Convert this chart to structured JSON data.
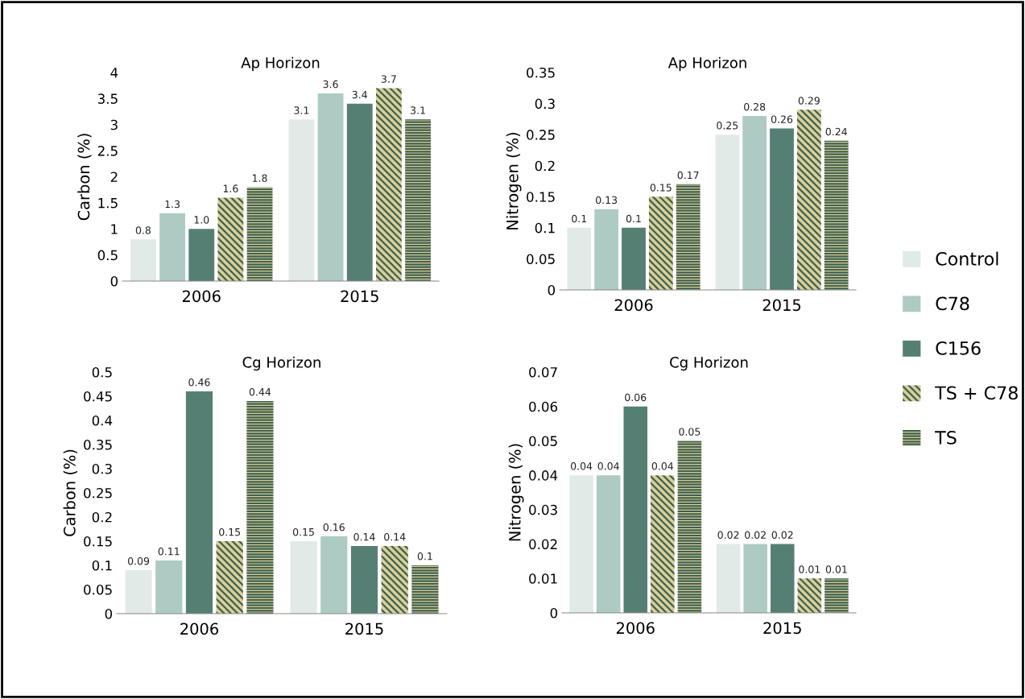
{
  "chart_data": [
    {
      "type": "bar",
      "title": "Ap Horizon",
      "ylabel": "Carbon (%)",
      "categories": [
        "2006",
        "2015"
      ],
      "ylim": [
        0,
        4
      ],
      "yticks": [
        0,
        0.5,
        1,
        1.5,
        2,
        2.5,
        3,
        3.5,
        4
      ],
      "grid": false,
      "legend": "right",
      "series": [
        {
          "name": "Control",
          "color": "#e2eae7",
          "values": [
            0.8,
            3.1
          ],
          "value_labels": [
            "0.8",
            "3.1"
          ]
        },
        {
          "name": "C78",
          "color": "#aecbc3",
          "values": [
            1.3,
            3.6
          ],
          "value_labels": [
            "1.3",
            "3.6"
          ]
        },
        {
          "name": "C156",
          "color": "#567f74",
          "values": [
            1.0,
            3.4
          ],
          "value_labels": [
            "1.0",
            "3.4"
          ]
        },
        {
          "name": "TS + C78",
          "color": "#d8cf98",
          "values": [
            1.6,
            3.7
          ],
          "value_labels": [
            "1.6",
            "3.7"
          ]
        },
        {
          "name": "TS",
          "color": "#d8cf98",
          "values": [
            1.8,
            3.1
          ],
          "value_labels": [
            "1.8",
            "3.1"
          ]
        }
      ]
    },
    {
      "type": "bar",
      "title": "Ap Horizon",
      "ylabel": "Nitrogen (%)",
      "categories": [
        "2006",
        "2015"
      ],
      "ylim": [
        0,
        0.35
      ],
      "yticks": [
        0,
        0.05,
        0.1,
        0.15,
        0.2,
        0.25,
        0.3,
        0.35
      ],
      "grid": false,
      "data_labels": true,
      "series": [
        {
          "color": "#e2eae7",
          "values": [
            0.1,
            0.25
          ]
        },
        {
          "color": "#aecbc3",
          "values": [
            0.13,
            0.28
          ]
        },
        {
          "color": "#567f74",
          "values": [
            0.1,
            0.26
          ]
        },
        {
          "color": "#d8cf98",
          "values": [
            0.15,
            0.29
          ]
        },
        {
          "color": "#d8cf98",
          "values": [
            0.17,
            0.24
          ]
        }
      ]
    },
    {
      "type": "bar",
      "title": "Cg Horizon",
      "ylabel": "Carbon (%)",
      "categories": [
        "2006",
        "2015"
      ],
      "ylim": [
        0,
        0.5
      ],
      "yticks": [
        0,
        0.05,
        0.1,
        0.15,
        0.2,
        0.25,
        0.3,
        0.35,
        0.4,
        0.45,
        0.5
      ],
      "grid": false,
      "data_labels": true,
      "series": [
        {
          "color": "#e2eae7",
          "values": [
            0.09,
            0.15
          ]
        },
        {
          "color": "#aecbc3",
          "values": [
            0.11,
            0.16
          ]
        },
        {
          "color": "#567f74",
          "values": [
            0.46,
            0.14
          ]
        },
        {
          "color": "#d8cf98",
          "values": [
            0.15,
            0.14
          ]
        },
        {
          "color": "#d8cf98",
          "values": [
            0.44,
            0.1
          ]
        }
      ]
    },
    {
      "type": "bar",
      "title": "Cg Horizon",
      "ylabel": "Nitrogen (%)",
      "categories": [
        "2006",
        "2015"
      ],
      "ylim": [
        0,
        0.07
      ],
      "yticks": [
        0,
        0.01,
        0.02,
        0.03,
        0.04,
        0.05,
        0.06,
        0.07
      ],
      "grid": false,
      "data_labels": true,
      "series": [
        {
          "color": "#e2eae7",
          "values": [
            0.04,
            0.02
          ]
        },
        {
          "color": "#aecbc3",
          "values": [
            0.04,
            0.02
          ]
        },
        {
          "color": "#567f74",
          "values": [
            0.06,
            0.02
          ]
        },
        {
          "color": "#d8cf98",
          "values": [
            0.04,
            0.01
          ]
        },
        {
          "color": "#d8cf98",
          "values": [
            0.05,
            0.01
          ]
        }
      ]
    }
  ]
}
